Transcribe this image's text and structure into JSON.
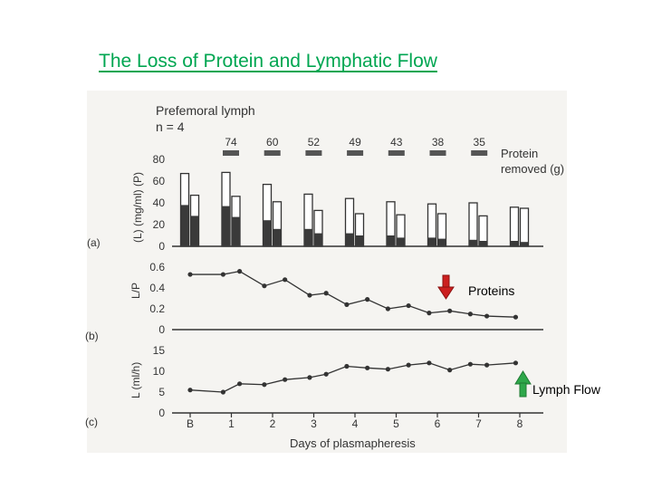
{
  "slide_title": "The Loss of Protein and Lymphatic Flow",
  "colors": {
    "title": "#00a651",
    "arrow_down": "#cc1f1f",
    "arrow_up": "#2ea84a",
    "ink": "#333333",
    "filled_bar": "#3a3a3a"
  },
  "annotations": {
    "proteins": {
      "label": "Proteins",
      "arrow": "red-down-arrow"
    },
    "lymph": {
      "label": "Lymph Flow",
      "arrow": "green-up-arrow"
    }
  },
  "chart_data": [
    {
      "panel": "(a)",
      "type": "bar",
      "header": "Prefemoral lymph",
      "subheader": "n = 4",
      "ylabel": "(L)  (mg/ml)  (P)",
      "yticks": [
        "0",
        "20",
        "40",
        "60",
        "80"
      ],
      "ylim": [
        0,
        80
      ],
      "categories": [
        "B",
        "1",
        "2",
        "3",
        "4",
        "5",
        "6",
        "7",
        "8"
      ],
      "series": [
        {
          "name": "P",
          "values": [
            67,
            68,
            57,
            48,
            44,
            41,
            39,
            40,
            36
          ],
          "style": "outline"
        },
        {
          "name": "L",
          "values": [
            47,
            46,
            41,
            33,
            30,
            29,
            30,
            28,
            35
          ],
          "style": "outline"
        }
      ],
      "filled": {
        "P": [
          38,
          37,
          24,
          16,
          12,
          10,
          8,
          6,
          5
        ],
        "L": [
          28,
          27,
          16,
          12,
          10,
          8,
          7,
          5,
          4
        ]
      },
      "protein_removed": {
        "label": "Protein\nremoved (g)",
        "values": [
          "74",
          "60",
          "52",
          "49",
          "43",
          "38",
          "35"
        ]
      }
    },
    {
      "panel": "(b)",
      "type": "line",
      "ylabel": "L/P",
      "yticks": [
        "0",
        "0.2",
        "0.4",
        "0.6"
      ],
      "ylim": [
        0,
        0.6
      ],
      "x": [
        0,
        0.8,
        1.2,
        1.8,
        2.3,
        2.9,
        3.3,
        3.8,
        4.3,
        4.8,
        5.3,
        5.8,
        6.3,
        6.8,
        7.2,
        7.9
      ],
      "values": [
        0.53,
        0.53,
        0.56,
        0.42,
        0.48,
        0.33,
        0.35,
        0.24,
        0.29,
        0.2,
        0.23,
        0.16,
        0.18,
        0.15,
        0.13,
        0.12
      ]
    },
    {
      "panel": "(c)",
      "type": "line",
      "ylabel": "L (ml/h)",
      "yticks": [
        "0",
        "5",
        "10",
        "15"
      ],
      "ylim": [
        0,
        15
      ],
      "x": [
        0,
        0.8,
        1.2,
        1.8,
        2.3,
        2.9,
        3.3,
        3.8,
        4.3,
        4.8,
        5.3,
        5.8,
        6.3,
        6.8,
        7.2,
        7.9
      ],
      "values": [
        5.5,
        5.0,
        7.0,
        6.8,
        8.0,
        8.5,
        9.3,
        11.2,
        10.8,
        10.5,
        11.5,
        12.0,
        10.3,
        11.7,
        11.5,
        12.0
      ],
      "xlabel": "Days of plasmapheresis",
      "xticks": [
        "B",
        "1",
        "2",
        "3",
        "4",
        "5",
        "6",
        "7",
        "8"
      ],
      "xlim": [
        0,
        8
      ]
    }
  ]
}
